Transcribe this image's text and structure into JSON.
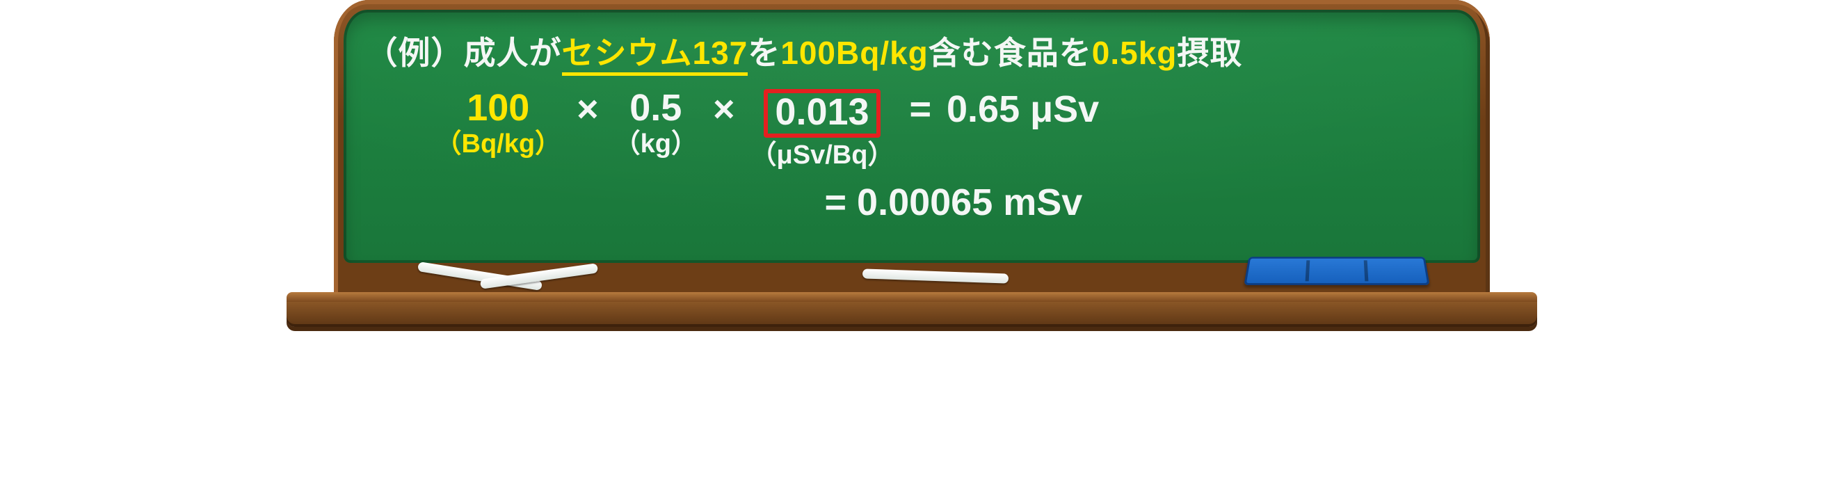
{
  "colors": {
    "board": "#1e8843",
    "wood": "#7d4a1f",
    "white": "#f4f7f5",
    "yellow": "#ffe600",
    "red": "#e52020",
    "eraser": "#155fbb"
  },
  "title": {
    "pre": "（例）成人が",
    "cesium": "セシウム137",
    "mid1": "を",
    "bq": "100Bq/kg",
    "mid2": "含む食品を",
    "mass": "0.5kg",
    "post": "摂取"
  },
  "equation": {
    "t1": {
      "val": "100",
      "unit": "（Bq/kg）"
    },
    "op1": "×",
    "t2": {
      "val": "0.5",
      "unit": "（kg）"
    },
    "op2": "×",
    "t3": {
      "val": "0.013",
      "unit": "（μSv/Bq）"
    },
    "eq": "=",
    "r1": "0.65 μSv",
    "r2": "=  0.00065 mSv"
  }
}
